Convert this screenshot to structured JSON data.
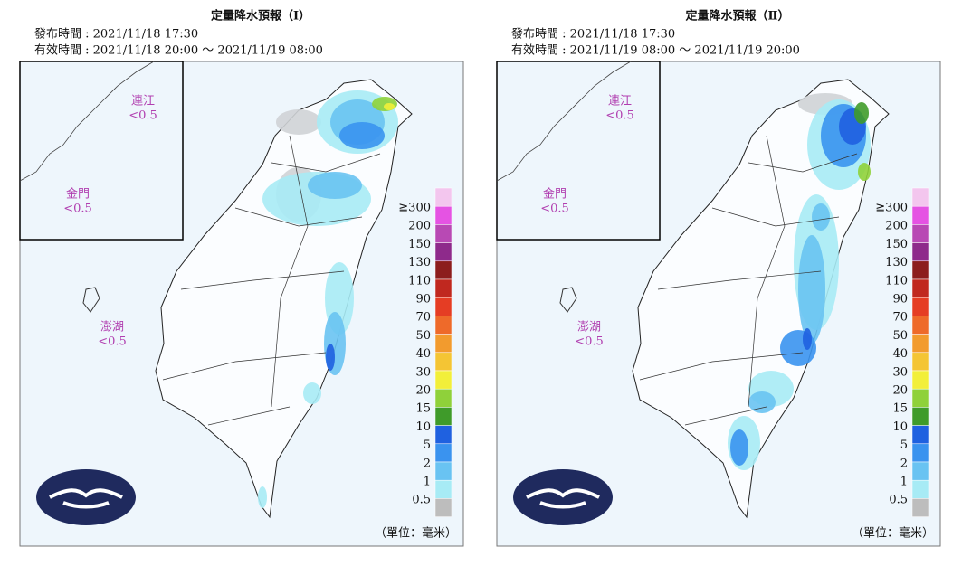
{
  "panels": [
    {
      "title": "定量降水預報（Ⅰ）",
      "issued": "發布時間 : 2021/11/18 17:30",
      "valid": "有效時間 : 2021/11/18 20:00 ～ 2021/11/19 08:00",
      "islands": [
        {
          "name": "連江",
          "value": "<0.5"
        },
        {
          "name": "金門",
          "value": "<0.5"
        },
        {
          "name": "澎湖",
          "value": "<0.5"
        }
      ],
      "unit": "（單位：毫米）"
    },
    {
      "title": "定量降水預報（Ⅱ）",
      "issued": "發布時間 : 2021/11/18 17:30",
      "valid": "有效時間 : 2021/11/19 08:00 ～ 2021/11/19 20:00",
      "islands": [
        {
          "name": "連江",
          "value": "<0.5"
        },
        {
          "name": "金門",
          "value": "<0.5"
        },
        {
          "name": "澎湖",
          "value": "<0.5"
        }
      ],
      "unit": "（單位：毫米）"
    }
  ],
  "legend": {
    "labels": [
      "≧300",
      "200",
      "150",
      "130",
      "110",
      "90",
      "70",
      "50",
      "40",
      "30",
      "20",
      "15",
      "10",
      "5",
      "2",
      "1",
      "0.5"
    ],
    "colors": [
      "#f3c6ee",
      "#e553e3",
      "#b849b4",
      "#8e2a8b",
      "#8c1d1d",
      "#c0281f",
      "#e53d24",
      "#ee6a2a",
      "#f29b2e",
      "#f4c534",
      "#f2ef3a",
      "#8fd13a",
      "#3f9b2a",
      "#1f61e0",
      "#3a93ef",
      "#69c3f2",
      "#a7ebf5",
      "#bdbdbd"
    ]
  }
}
